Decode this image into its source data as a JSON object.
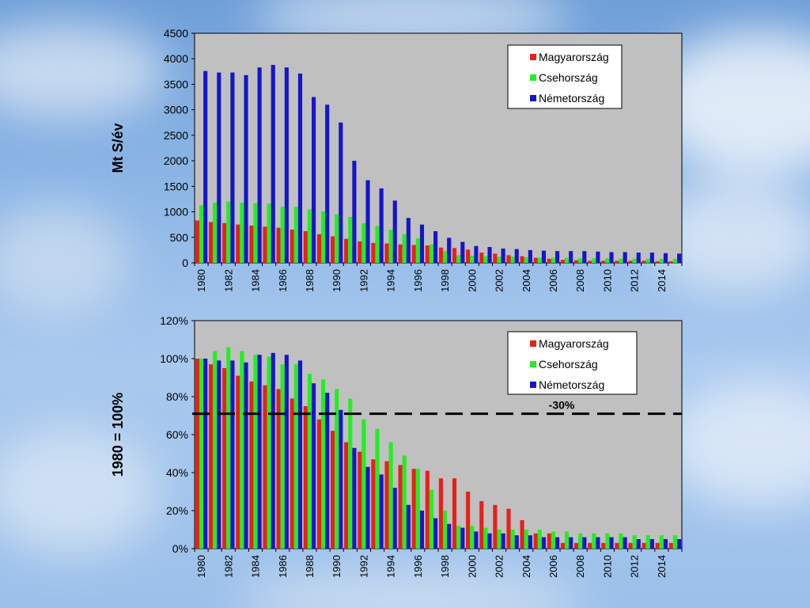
{
  "chart_data": [
    {
      "type": "bar",
      "title": "",
      "xlabel": "",
      "ylabel": "Mt S/év",
      "ylim": [
        0,
        4500
      ],
      "yticks": [
        "0",
        "500",
        "1000",
        "1500",
        "2000",
        "2500",
        "3000",
        "3500",
        "4000",
        "4500"
      ],
      "ytick_values": [
        0,
        500,
        1000,
        1500,
        2000,
        2500,
        3000,
        3500,
        4000,
        4500
      ],
      "categories": [
        "1980",
        "1981",
        "1982",
        "1983",
        "1984",
        "1985",
        "1986",
        "1987",
        "1988",
        "1989",
        "1990",
        "1991",
        "1992",
        "1993",
        "1994",
        "1995",
        "1996",
        "1997",
        "1998",
        "1999",
        "2000",
        "2001",
        "2002",
        "2003",
        "2004",
        "2005",
        "2006",
        "2007",
        "2008",
        "2009",
        "2010",
        "2011",
        "2012",
        "2013",
        "2014",
        "2015"
      ],
      "xtick_labels": [
        "1980",
        "1982",
        "1984",
        "1986",
        "1988",
        "1990",
        "1992",
        "1994",
        "1996",
        "1998",
        "2000",
        "2002",
        "2004",
        "2006",
        "2008",
        "2010",
        "2012",
        "2014"
      ],
      "legend_position": "top-right",
      "grid": false,
      "series": [
        {
          "name": "Magyarország",
          "color": "#e8201a",
          "values": [
            830,
            800,
            780,
            750,
            730,
            710,
            690,
            650,
            620,
            560,
            520,
            470,
            420,
            390,
            380,
            360,
            350,
            340,
            300,
            290,
            260,
            200,
            180,
            150,
            130,
            100,
            80,
            60,
            50,
            40,
            40,
            40,
            40,
            40,
            30,
            30
          ]
        },
        {
          "name": "Csehország",
          "color": "#22ee22",
          "values": [
            1130,
            1180,
            1200,
            1180,
            1170,
            1160,
            1100,
            1100,
            1050,
            1010,
            950,
            900,
            780,
            720,
            650,
            560,
            480,
            360,
            230,
            150,
            140,
            130,
            120,
            120,
            110,
            100,
            100,
            100,
            90,
            90,
            90,
            85,
            85,
            80,
            80,
            80
          ]
        },
        {
          "name": "Németország",
          "color": "#1515cc",
          "values": [
            3760,
            3730,
            3730,
            3680,
            3830,
            3880,
            3830,
            3710,
            3250,
            3100,
            2750,
            2000,
            1620,
            1460,
            1220,
            880,
            750,
            620,
            490,
            410,
            330,
            310,
            280,
            270,
            250,
            240,
            230,
            230,
            230,
            220,
            210,
            210,
            200,
            200,
            190,
            180
          ]
        }
      ]
    },
    {
      "type": "bar",
      "title": "",
      "xlabel": "",
      "ylabel": "1980 = 100%",
      "ylim": [
        0,
        120
      ],
      "yticks": [
        "0%",
        "20%",
        "40%",
        "60%",
        "80%",
        "100%",
        "120%"
      ],
      "ytick_values": [
        0,
        20,
        40,
        60,
        80,
        100,
        120
      ],
      "categories": [
        "1980",
        "1981",
        "1982",
        "1983",
        "1984",
        "1985",
        "1986",
        "1987",
        "1988",
        "1989",
        "1990",
        "1991",
        "1992",
        "1993",
        "1994",
        "1995",
        "1996",
        "1997",
        "1998",
        "1999",
        "2000",
        "2001",
        "2002",
        "2003",
        "2004",
        "2005",
        "2006",
        "2007",
        "2008",
        "2009",
        "2010",
        "2011",
        "2012",
        "2013",
        "2014",
        "2015"
      ],
      "xtick_labels": [
        "1980",
        "1982",
        "1984",
        "1986",
        "1988",
        "1990",
        "1992",
        "1994",
        "1996",
        "1998",
        "2000",
        "2002",
        "2004",
        "2006",
        "2008",
        "2010",
        "2012",
        "2014"
      ],
      "legend_position": "top-right",
      "grid": false,
      "reference_line": {
        "value": 71,
        "label": "-30%",
        "style": "dashed"
      },
      "series": [
        {
          "name": "Magyarország",
          "color": "#e8201a",
          "values": [
            100,
            97,
            95,
            91,
            88,
            86,
            84,
            79,
            75,
            68,
            62,
            56,
            51,
            47,
            46,
            44,
            42,
            41,
            37,
            37,
            30,
            25,
            23,
            21,
            15,
            8,
            8,
            3,
            3,
            3,
            3,
            3,
            3,
            3,
            3,
            3
          ]
        },
        {
          "name": "Csehország",
          "color": "#22ee22",
          "values": [
            100,
            104,
            106,
            104,
            102,
            101,
            97,
            97,
            92,
            89,
            84,
            79,
            68,
            63,
            56,
            49,
            42,
            31,
            20,
            12,
            12,
            11,
            10,
            10,
            10,
            10,
            9,
            9,
            8,
            8,
            8,
            8,
            7,
            7,
            7,
            7
          ]
        },
        {
          "name": "Németország",
          "color": "#1515cc",
          "values": [
            100,
            99,
            99,
            98,
            102,
            103,
            102,
            99,
            87,
            82,
            73,
            53,
            43,
            39,
            32,
            23,
            20,
            16,
            13,
            11,
            9,
            8,
            8,
            7,
            7,
            6,
            6,
            6,
            6,
            6,
            6,
            6,
            5,
            5,
            5,
            5
          ]
        }
      ]
    }
  ]
}
